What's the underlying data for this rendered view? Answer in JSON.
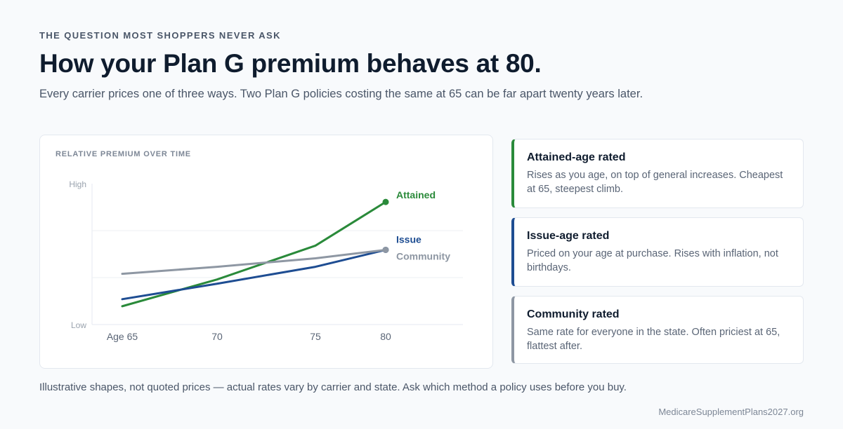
{
  "header": {
    "eyebrow": "THE QUESTION MOST SHOPPERS NEVER ASK",
    "title": "How your Plan G premium behaves at 80.",
    "subtitle": "Every carrier prices one of three ways. Two Plan G policies costing the same at 65 can be far apart twenty years later."
  },
  "chart_data": {
    "type": "line",
    "title": "RELATIVE PREMIUM OVER TIME",
    "x": [
      65,
      70,
      75,
      80
    ],
    "x_tick_labels": [
      "Age 65",
      "70",
      "75",
      "80"
    ],
    "y_tick_labels": [
      "High",
      "Low"
    ],
    "ylim": [
      0,
      10
    ],
    "grid": true,
    "series": [
      {
        "name": "Attained",
        "color": "#2a8a3a",
        "values": [
          1.3,
          3.2,
          5.6,
          8.7
        ]
      },
      {
        "name": "Issue",
        "color": "#1e4d92",
        "values": [
          1.8,
          2.9,
          4.1,
          5.3
        ]
      },
      {
        "name": "Community",
        "color": "#8e97a3",
        "values": [
          3.6,
          4.1,
          4.7,
          5.3
        ]
      }
    ]
  },
  "methods": [
    {
      "title": "Attained-age rated",
      "description": "Rises as you age, on top of general increases. Cheapest at 65, steepest climb.",
      "color": "#2a8a3a"
    },
    {
      "title": "Issue-age rated",
      "description": "Priced on your age at purchase. Rises with inflation, not birthdays.",
      "color": "#1e4d92"
    },
    {
      "title": "Community rated",
      "description": "Same rate for everyone in the state. Often priciest at 65, flattest after.",
      "color": "#8e97a3"
    }
  ],
  "footnote": "Illustrative shapes, not quoted prices — actual rates vary by carrier and state. Ask which method a policy uses before you buy.",
  "site": "MedicareSupplementPlans2027.org"
}
